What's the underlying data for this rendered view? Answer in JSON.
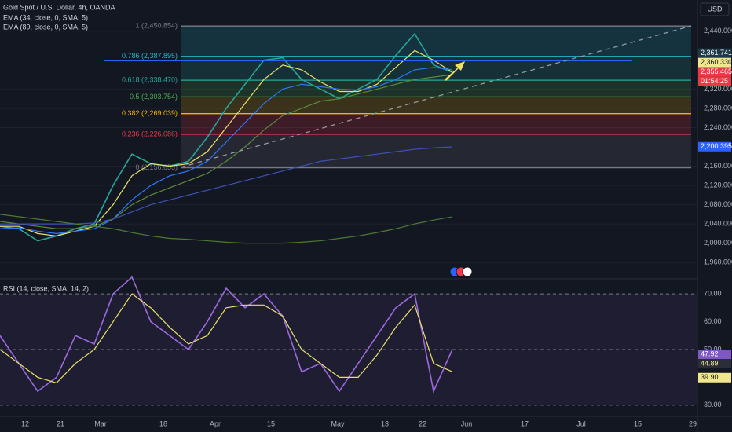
{
  "header": {
    "symbol": "Gold Spot / U.S. Dollar, 4h, OANDA",
    "currency": "USD"
  },
  "x_axis_labels": [
    "12",
    "21",
    "Mar",
    "18",
    "Apr",
    "15",
    "May",
    "13",
    "22",
    "Jun",
    "17",
    "Jul",
    "15",
    "29"
  ],
  "chart_data": [
    {
      "type": "line",
      "ylim": [
        1926,
        2505
      ],
      "yticks": [
        {
          "value": 2440,
          "label": "2,440.000"
        },
        {
          "value": 2320,
          "label": "2,320.000"
        },
        {
          "value": 2280,
          "label": "2,280.000"
        },
        {
          "value": 2240,
          "label": "2,240.000"
        },
        {
          "value": 2160,
          "label": "2,160.000"
        },
        {
          "value": 2120,
          "label": "2,120.000"
        },
        {
          "value": 2080,
          "label": "2,080.000"
        },
        {
          "value": 2040,
          "label": "2,040.000"
        },
        {
          "value": 2000,
          "label": "2,000.000"
        },
        {
          "value": 1960,
          "label": "1,960.000"
        }
      ],
      "grid": true,
      "fib_levels": [
        {
          "value": 2450.854,
          "label": "1 (2,450.854)",
          "color": "#787b86"
        },
        {
          "value": 2387.895,
          "label": "0.786 (2,387.895)",
          "color": "#22b5c9"
        },
        {
          "value": 2338.47,
          "label": "0.618 (2,338.470)",
          "color": "#26a69a"
        },
        {
          "value": 2303.754,
          "label": "0.5 (2,303.754)",
          "color": "#4caf50"
        },
        {
          "value": 2269.039,
          "label": "0.382 (2,269.039)",
          "color": "#f5b400"
        },
        {
          "value": 2226.086,
          "label": "0.236 (2,226.086)",
          "color": "#f23645"
        },
        {
          "value": 2156.655,
          "label": "0 (2,156.655)",
          "color": "#787b86"
        }
      ],
      "series": [
        {
          "color": "#26a69a",
          "values": [
            2035,
            2030,
            2005,
            2015,
            2030,
            2040,
            2120,
            2185,
            2165,
            2160,
            2170,
            2220,
            2280,
            2330,
            2380,
            2385,
            2340,
            2320,
            2300,
            2320,
            2340,
            2390,
            2435,
            2370,
            2355
          ]
        },
        {
          "name": "EMA (34, close, 0, SMA, 5)",
          "color": "#e8e26a",
          "values": [
            2035,
            2035,
            2020,
            2015,
            2025,
            2035,
            2080,
            2140,
            2165,
            2160,
            2165,
            2190,
            2240,
            2290,
            2340,
            2370,
            2360,
            2335,
            2315,
            2315,
            2330,
            2365,
            2400,
            2380,
            2355
          ]
        },
        {
          "name": "EMA (89, close, 0, SMA, 5)",
          "color": "#2979ff",
          "values": [
            2030,
            2032,
            2025,
            2020,
            2025,
            2030,
            2050,
            2090,
            2120,
            2140,
            2150,
            2170,
            2210,
            2250,
            2290,
            2320,
            2330,
            2325,
            2320,
            2318,
            2325,
            2340,
            2360,
            2365,
            2360
          ]
        },
        {
          "color": "#5b8a3c",
          "values": [
            2045,
            2040,
            2035,
            2030,
            2030,
            2035,
            2050,
            2080,
            2100,
            2115,
            2130,
            2145,
            2170,
            2200,
            2235,
            2265,
            2280,
            2295,
            2300,
            2310,
            2320,
            2330,
            2340,
            2345,
            2350
          ]
        },
        {
          "color": "#3f51b5",
          "values": [
            2040,
            2040,
            2040,
            2040,
            2040,
            2042,
            2050,
            2065,
            2080,
            2090,
            2100,
            2110,
            2120,
            2130,
            2140,
            2150,
            2160,
            2170,
            2175,
            2180,
            2185,
            2190,
            2195,
            2198,
            2200
          ]
        },
        {
          "color": "#4c7a34",
          "values": [
            2060,
            2055,
            2050,
            2045,
            2040,
            2035,
            2030,
            2022,
            2015,
            2010,
            2008,
            2005,
            2002,
            2000,
            2000,
            2000,
            2002,
            2005,
            2010,
            2015,
            2022,
            2030,
            2040,
            2048,
            2055
          ]
        }
      ],
      "price_labels": [
        {
          "value": 2361.741,
          "label": "2,361.741",
          "color": "#1e3a48",
          "text_color": "#ffffff"
        },
        {
          "value": 2360.33,
          "label": "2,360.330",
          "color": "#f0e68c",
          "text_color": "#131722"
        },
        {
          "value": 2355.465,
          "label": "2,355.465",
          "color": "#f23645",
          "text_color": "#ffffff"
        },
        {
          "value": 2200.395,
          "label": "2,200.395",
          "color": "#2962ff",
          "text_color": "#ffffff"
        }
      ],
      "countdown": "01:54:25"
    },
    {
      "type": "line",
      "title": "RSI (14, close, SMA, 14, 2)",
      "ylim": [
        26,
        75.4
      ],
      "yticks": [
        {
          "value": 70,
          "label": "70.00"
        },
        {
          "value": 60,
          "label": "60.00"
        },
        {
          "value": 50,
          "label": "50.00"
        },
        {
          "value": 30,
          "label": "30.00"
        }
      ],
      "series": [
        {
          "color": "#9c6ade",
          "values": [
            55,
            45,
            35,
            40,
            55,
            52,
            70,
            76,
            60,
            55,
            50,
            60,
            72,
            65,
            70,
            62,
            42,
            45,
            35,
            45,
            55,
            65,
            70,
            35,
            50
          ]
        },
        {
          "color": "#e8e26a",
          "values": [
            50,
            45,
            40,
            38,
            45,
            50,
            60,
            70,
            65,
            58,
            52,
            55,
            65,
            66,
            66,
            62,
            50,
            45,
            40,
            40,
            48,
            58,
            66,
            45,
            42
          ]
        }
      ],
      "price_labels": [
        {
          "value": 47.92,
          "label": "47.92",
          "color": "#7e57c2",
          "text_color": "#ffffff"
        },
        {
          "value": 44.89,
          "label": "44.89",
          "color": "#2a2e39",
          "text_color": "#f0e68c"
        },
        {
          "value": 39.9,
          "label": "39.90",
          "color": "#f0e68c",
          "text_color": "#131722"
        }
      ]
    }
  ]
}
